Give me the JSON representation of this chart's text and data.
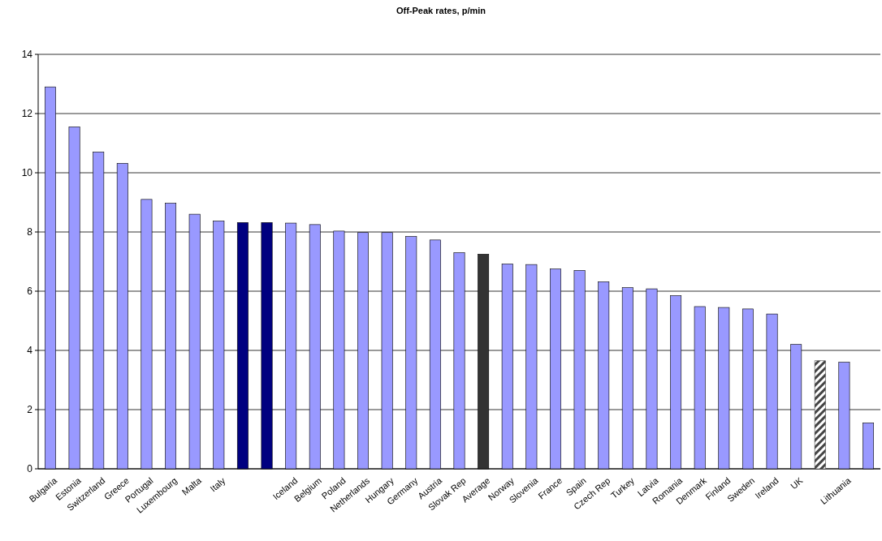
{
  "chart_data": {
    "type": "bar",
    "title": "Off-Peak rates, p/min",
    "categories": [
      "Bulgaria",
      "Estonia",
      "Switzerland",
      "Greece",
      "Portugal",
      "Luxembourg",
      "Malta",
      "Italy",
      null,
      null,
      "Iceland",
      "Belgium",
      "Poland",
      "Netherlands",
      "Hungary",
      "Germany",
      "Austria",
      "Slovak Rep",
      "Average",
      "Norway",
      "Slovenia",
      "France",
      "Spain",
      "Czech Rep",
      "Turkey",
      "Latvia",
      "Romania",
      "Denmark",
      "Finland",
      "Sweden",
      "Ireland",
      "UK",
      null,
      "Lithuania",
      null
    ],
    "values": [
      12.9,
      11.55,
      10.7,
      10.32,
      9.1,
      8.97,
      8.6,
      8.37,
      8.32,
      8.32,
      8.3,
      8.25,
      8.03,
      7.98,
      7.98,
      7.85,
      7.73,
      7.3,
      7.25,
      6.92,
      6.9,
      6.75,
      6.7,
      6.32,
      6.12,
      6.08,
      5.85,
      5.48,
      5.45,
      5.4,
      5.23,
      4.2,
      3.65,
      3.6,
      1.55
    ],
    "colors": [
      "#9999ff",
      "#9999ff",
      "#9999ff",
      "#9999ff",
      "#9999ff",
      "#9999ff",
      "#9999ff",
      "#9999ff",
      "#000080",
      "#000080",
      "#9999ff",
      "#9999ff",
      "#9999ff",
      "#9999ff",
      "#9999ff",
      "#9999ff",
      "#9999ff",
      "#9999ff",
      "#333333",
      "#9999ff",
      "#9999ff",
      "#9999ff",
      "#9999ff",
      "#9999ff",
      "#9999ff",
      "#9999ff",
      "#9999ff",
      "#9999ff",
      "#9999ff",
      "#9999ff",
      "#9999ff",
      "#9999ff",
      "#444444",
      "#9999ff",
      "#9999ff"
    ],
    "ylim": [
      0,
      14
    ],
    "yticks": [
      0,
      2,
      4,
      6,
      8,
      10,
      12,
      14
    ],
    "grid": "y"
  }
}
